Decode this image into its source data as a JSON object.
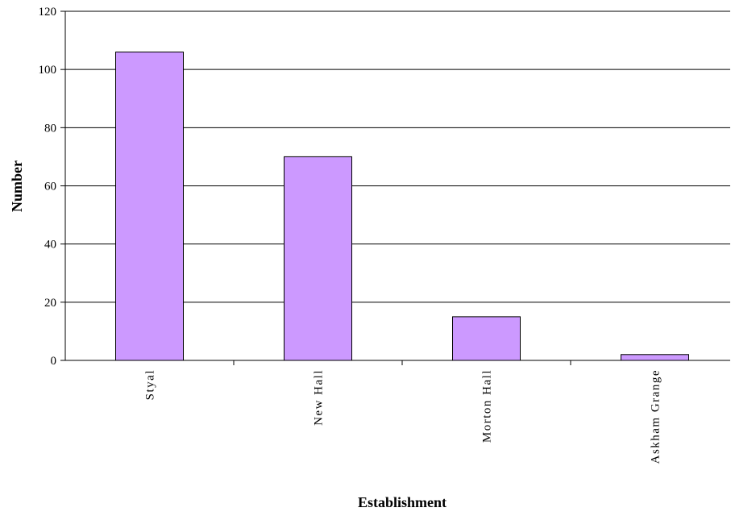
{
  "chart_data": {
    "type": "bar",
    "title": "",
    "xlabel": "Establishment",
    "ylabel": "Number",
    "categories": [
      "Styal",
      "New Hall",
      "Morton Hall",
      "Askham Grange"
    ],
    "values": [
      106,
      70,
      15,
      2
    ],
    "ylim": [
      0,
      120
    ],
    "yticks": [
      0,
      20,
      40,
      60,
      80,
      100,
      120
    ],
    "grid": true,
    "legend": "none",
    "bar_color": "#cc99ff",
    "bar_edge_color": "#000000"
  }
}
